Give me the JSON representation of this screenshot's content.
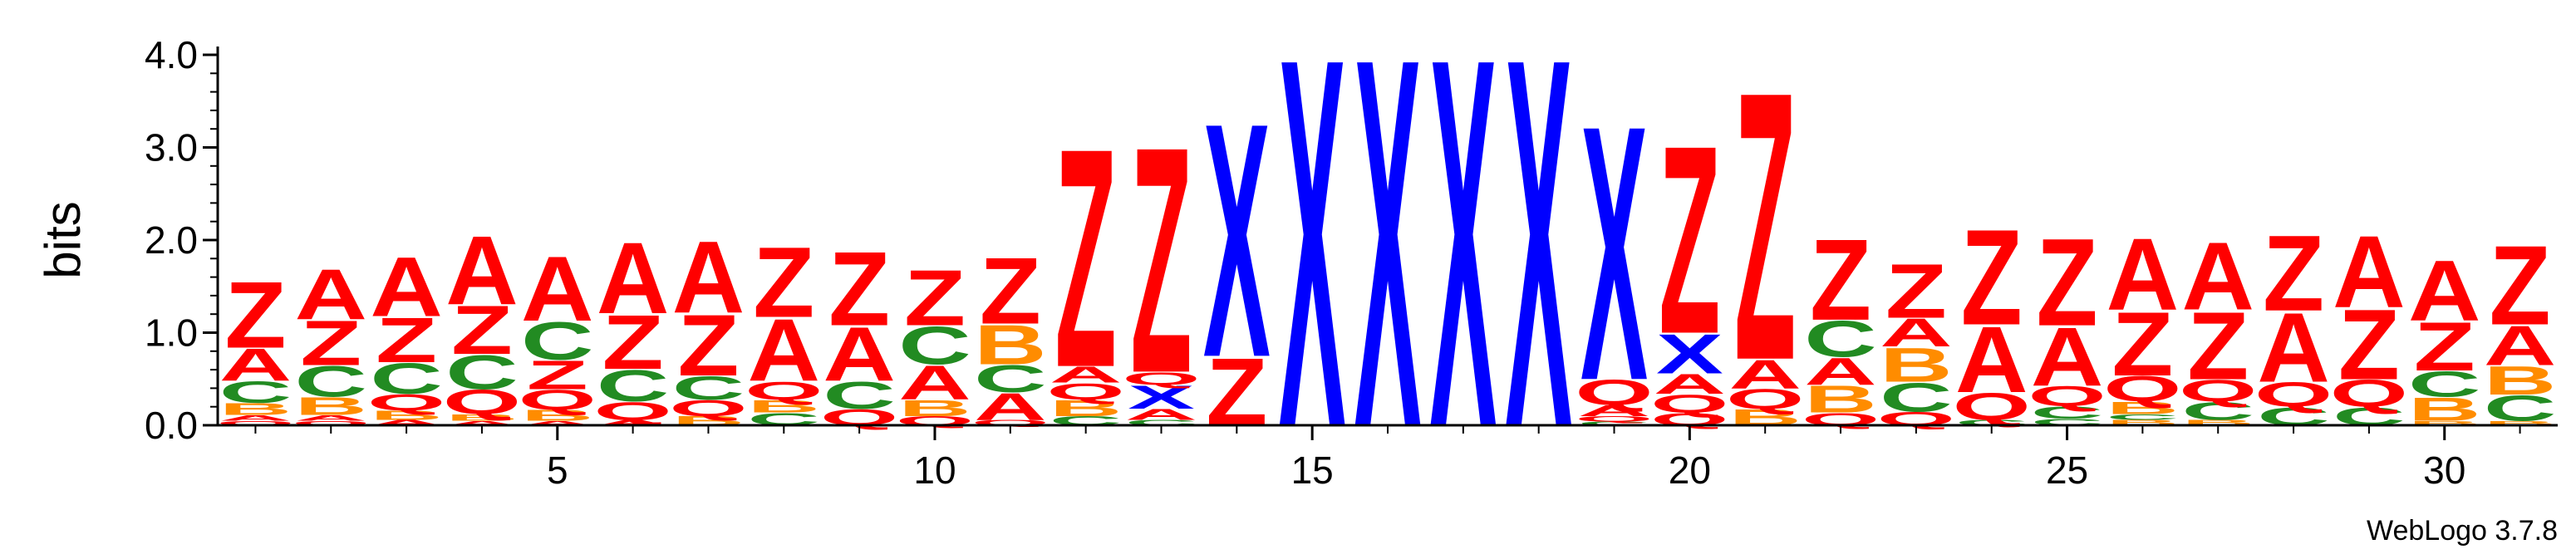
{
  "chart_data": {
    "type": "sequence-logo",
    "ylabel": "bits",
    "ylim": [
      0,
      4.0
    ],
    "y_ticks": [
      "0.0",
      "1.0",
      "2.0",
      "3.0",
      "4.0"
    ],
    "x_ticks": [
      5,
      10,
      15,
      20,
      25,
      30
    ],
    "credit": "WebLogo 3.7.8",
    "colors": {
      "Z": "#ff0000",
      "A": "#ff0000",
      "X": "#0000ff",
      "C": "#228b22",
      "B": "#ff8c00",
      "Q": "#ff0000"
    },
    "positions": [
      {
        "pos": 1,
        "letters": [
          [
            "Q",
            0.05
          ],
          [
            "A",
            0.06
          ],
          [
            "B",
            0.13
          ],
          [
            "C",
            0.24
          ],
          [
            "A",
            0.36
          ],
          [
            "Z",
            0.74
          ]
        ]
      },
      {
        "pos": 2,
        "letters": [
          [
            "Q",
            0.05
          ],
          [
            "A",
            0.06
          ],
          [
            "B",
            0.2
          ],
          [
            "C",
            0.34
          ],
          [
            "Z",
            0.5
          ],
          [
            "A",
            0.56
          ]
        ]
      },
      {
        "pos": 3,
        "letters": [
          [
            "A",
            0.06
          ],
          [
            "B",
            0.1
          ],
          [
            "Q",
            0.18
          ],
          [
            "C",
            0.34
          ],
          [
            "Z",
            0.5
          ],
          [
            "A",
            0.66
          ]
        ]
      },
      {
        "pos": 4,
        "letters": [
          [
            "A",
            0.05
          ],
          [
            "B",
            0.07
          ],
          [
            "Q",
            0.27
          ],
          [
            "C",
            0.38
          ],
          [
            "Z",
            0.54
          ],
          [
            "A",
            0.76
          ]
        ]
      },
      {
        "pos": 5,
        "letters": [
          [
            "A",
            0.05
          ],
          [
            "B",
            0.12
          ],
          [
            "Q",
            0.22
          ],
          [
            "Z",
            0.32
          ],
          [
            "C",
            0.42
          ],
          [
            "A",
            0.72
          ]
        ]
      },
      {
        "pos": 6,
        "letters": [
          [
            "A",
            0.06
          ],
          [
            "Q",
            0.2
          ],
          [
            "C",
            0.35
          ],
          [
            "Z",
            0.6
          ],
          [
            "A",
            0.79
          ]
        ]
      },
      {
        "pos": 7,
        "letters": [
          [
            "B",
            0.1
          ],
          [
            "Q",
            0.18
          ],
          [
            "C",
            0.26
          ],
          [
            "Z",
            0.68
          ],
          [
            "A",
            0.8
          ]
        ]
      },
      {
        "pos": 8,
        "letters": [
          [
            "C",
            0.14
          ],
          [
            "B",
            0.14
          ],
          [
            "Q",
            0.2
          ],
          [
            "A",
            0.69
          ],
          [
            "Z",
            0.78
          ]
        ]
      },
      {
        "pos": 9,
        "letters": [
          [
            "Q",
            0.18
          ],
          [
            "C",
            0.3
          ],
          [
            "A",
            0.6
          ],
          [
            "Z",
            0.82
          ]
        ]
      },
      {
        "pos": 10,
        "letters": [
          [
            "Q",
            0.1
          ],
          [
            "B",
            0.18
          ],
          [
            "A",
            0.38
          ],
          [
            "C",
            0.42
          ],
          [
            "Z",
            0.62
          ]
        ]
      },
      {
        "pos": 11,
        "letters": [
          [
            "Q",
            0.06
          ],
          [
            "A",
            0.3
          ],
          [
            "C",
            0.3
          ],
          [
            "B",
            0.44
          ],
          [
            "Z",
            0.74
          ]
        ]
      },
      {
        "pos": 12,
        "letters": [
          [
            "C",
            0.1
          ],
          [
            "B",
            0.18
          ],
          [
            "Q",
            0.18
          ],
          [
            "A",
            0.18
          ],
          [
            "Z",
            2.43
          ]
        ]
      },
      {
        "pos": 13,
        "letters": [
          [
            "C",
            0.06
          ],
          [
            "A",
            0.12
          ],
          [
            "X",
            0.26
          ],
          [
            "Q",
            0.14
          ],
          [
            "Z",
            2.51
          ]
        ]
      },
      {
        "pos": 14,
        "letters": [
          [
            "Z",
            0.75
          ],
          [
            "X",
            2.6
          ]
        ]
      },
      {
        "pos": 15,
        "letters": [
          [
            "X",
            4.1
          ]
        ]
      },
      {
        "pos": 16,
        "letters": [
          [
            "X",
            4.1
          ]
        ]
      },
      {
        "pos": 17,
        "letters": [
          [
            "X",
            4.1
          ]
        ]
      },
      {
        "pos": 18,
        "letters": [
          [
            "X",
            4.1
          ]
        ]
      },
      {
        "pos": 19,
        "letters": [
          [
            "C",
            0.04
          ],
          [
            "Q",
            0.06
          ],
          [
            "A",
            0.12
          ],
          [
            "Q",
            0.28
          ],
          [
            "X",
            2.83
          ]
        ]
      },
      {
        "pos": 20,
        "letters": [
          [
            "Q",
            0.14
          ],
          [
            "Q",
            0.2
          ],
          [
            "A",
            0.22
          ],
          [
            "X",
            0.44
          ],
          [
            "Z",
            2.09
          ]
        ]
      },
      {
        "pos": 21,
        "letters": [
          [
            "B",
            0.18
          ],
          [
            "Q",
            0.22
          ],
          [
            "A",
            0.32
          ],
          [
            "Z",
            2.98
          ]
        ]
      },
      {
        "pos": 22,
        "letters": [
          [
            "Q",
            0.14
          ],
          [
            "B",
            0.3
          ],
          [
            "A",
            0.3
          ],
          [
            "C",
            0.4
          ],
          [
            "Z",
            0.9
          ]
        ]
      },
      {
        "pos": 23,
        "letters": [
          [
            "Q",
            0.15
          ],
          [
            "C",
            0.32
          ],
          [
            "B",
            0.38
          ],
          [
            "A",
            0.31
          ],
          [
            "Z",
            0.6
          ]
        ]
      },
      {
        "pos": 24,
        "letters": [
          [
            "C",
            0.06
          ],
          [
            "Q",
            0.3
          ],
          [
            "A",
            0.73
          ],
          [
            "Z",
            1.06
          ]
        ]
      },
      {
        "pos": 25,
        "letters": [
          [
            "C",
            0.07
          ],
          [
            "C",
            0.14
          ],
          [
            "Q",
            0.22
          ],
          [
            "A",
            0.65
          ],
          [
            "Z",
            0.97
          ]
        ]
      },
      {
        "pos": 26,
        "letters": [
          [
            "B",
            0.06
          ],
          [
            "C",
            0.06
          ],
          [
            "B",
            0.14
          ],
          [
            "Q",
            0.28
          ],
          [
            "Z",
            0.71
          ],
          [
            "A",
            0.8
          ]
        ]
      },
      {
        "pos": 27,
        "letters": [
          [
            "B",
            0.06
          ],
          [
            "C",
            0.2
          ],
          [
            "Q",
            0.24
          ],
          [
            "Z",
            0.75
          ],
          [
            "A",
            0.75
          ]
        ]
      },
      {
        "pos": 28,
        "letters": [
          [
            "C",
            0.2
          ],
          [
            "Q",
            0.27
          ],
          [
            "A",
            0.77
          ],
          [
            "Z",
            0.84
          ]
        ]
      },
      {
        "pos": 29,
        "letters": [
          [
            "C",
            0.2
          ],
          [
            "Q",
            0.3
          ],
          [
            "Z",
            0.78
          ],
          [
            "A",
            0.8
          ]
        ]
      },
      {
        "pos": 30,
        "letters": [
          [
            "B",
            0.05
          ],
          [
            "B",
            0.26
          ],
          [
            "C",
            0.28
          ],
          [
            "Z",
            0.54
          ],
          [
            "A",
            0.67
          ]
        ]
      },
      {
        "pos": 31,
        "letters": [
          [
            "B",
            0.05
          ],
          [
            "C",
            0.28
          ],
          [
            "B",
            0.32
          ],
          [
            "A",
            0.44
          ],
          [
            "Z",
            0.88
          ]
        ]
      }
    ]
  }
}
